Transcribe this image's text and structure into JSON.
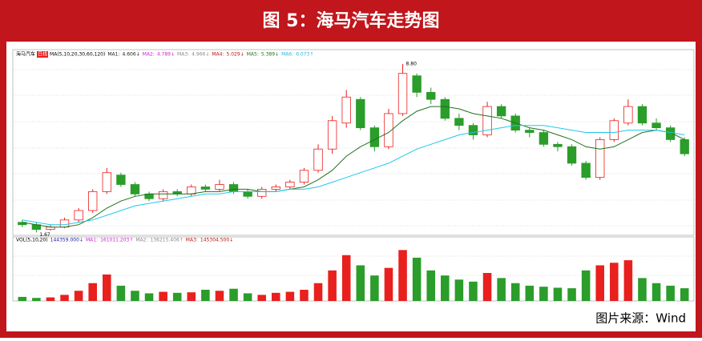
{
  "header": {
    "title": "图 5：海马汽车走势图"
  },
  "footer": {
    "source": "图片来源：Wind"
  },
  "chart_data": {
    "type": "candlestick",
    "price_legend": {
      "name": "海马汽车",
      "period": "日线",
      "indicator": "MA(5,10,20,30,60,120)",
      "items": [
        {
          "label": "MA1:",
          "value": "4.606↓",
          "color": "#1a1a1a"
        },
        {
          "label": "MA2:",
          "value": "4.789↓",
          "color": "#d020d0"
        },
        {
          "label": "MA3:",
          "value": "4.966↓",
          "color": "#888888"
        },
        {
          "label": "MA4:",
          "value": "5.029↓",
          "color": "#c01010"
        },
        {
          "label": "MA5:",
          "value": "5.389↓",
          "color": "#207020"
        },
        {
          "label": "MA6:",
          "value": "6.073↑",
          "color": "#20b8e0"
        }
      ]
    },
    "max_label": "8.80",
    "min_label": "1.67",
    "open": [
      2.1,
      2.0,
      1.8,
      1.9,
      2.2,
      2.6,
      3.4,
      4.1,
      3.7,
      3.3,
      3.1,
      3.4,
      3.3,
      3.6,
      3.5,
      3.7,
      3.4,
      3.2,
      3.5,
      3.6,
      3.8,
      4.3,
      5.2,
      6.3,
      7.3,
      6.1,
      5.3,
      6.7,
      8.3,
      7.6,
      7.3,
      6.5,
      6.2,
      5.8,
      7.0,
      6.6,
      6.0,
      5.9,
      5.4,
      5.3,
      4.6,
      4.0,
      5.6,
      6.3,
      7.0,
      6.3,
      6.1,
      5.6
    ],
    "high": [
      2.2,
      2.1,
      2.0,
      2.3,
      2.7,
      3.5,
      4.4,
      4.2,
      3.8,
      3.4,
      3.5,
      3.5,
      3.7,
      3.7,
      3.9,
      3.8,
      3.5,
      3.6,
      3.7,
      3.9,
      4.4,
      5.4,
      6.6,
      7.7,
      7.4,
      6.2,
      6.9,
      8.8,
      8.4,
      7.8,
      7.4,
      6.7,
      6.3,
      7.2,
      7.1,
      6.7,
      6.1,
      6.0,
      5.5,
      5.4,
      4.7,
      5.7,
      6.5,
      7.3,
      7.1,
      6.5,
      6.2,
      5.7
    ],
    "low": [
      1.9,
      1.67,
      1.75,
      1.85,
      2.1,
      2.5,
      3.3,
      3.6,
      3.2,
      3.0,
      3.0,
      3.2,
      3.2,
      3.4,
      3.4,
      3.3,
      3.1,
      3.1,
      3.4,
      3.5,
      3.7,
      4.2,
      5.0,
      6.1,
      6.0,
      5.1,
      5.2,
      6.6,
      7.4,
      7.1,
      6.4,
      6.0,
      5.6,
      5.7,
      6.5,
      5.9,
      5.7,
      5.3,
      5.1,
      4.5,
      3.9,
      3.9,
      5.5,
      6.2,
      6.2,
      6.0,
      5.5,
      4.9
    ],
    "close": [
      2.0,
      1.8,
      1.9,
      2.2,
      2.6,
      3.4,
      4.2,
      3.7,
      3.3,
      3.1,
      3.4,
      3.3,
      3.6,
      3.5,
      3.7,
      3.4,
      3.2,
      3.5,
      3.6,
      3.8,
      4.3,
      5.2,
      6.4,
      7.4,
      6.1,
      5.3,
      6.7,
      8.4,
      7.6,
      7.3,
      6.5,
      6.2,
      5.8,
      7.0,
      6.6,
      6.0,
      5.9,
      5.4,
      5.3,
      4.6,
      4.0,
      5.6,
      6.4,
      7.0,
      6.3,
      6.1,
      5.6,
      5.0
    ],
    "ma_lines": [
      {
        "color": "#207020",
        "values": [
          2.1,
          2.0,
          1.9,
          1.9,
          2.0,
          2.3,
          2.7,
          3.0,
          3.2,
          3.3,
          3.3,
          3.3,
          3.3,
          3.4,
          3.4,
          3.5,
          3.5,
          3.4,
          3.4,
          3.5,
          3.6,
          3.9,
          4.3,
          4.9,
          5.3,
          5.6,
          5.9,
          6.4,
          6.8,
          7.0,
          7.0,
          6.9,
          6.7,
          6.6,
          6.5,
          6.3,
          6.1,
          6.0,
          5.8,
          5.6,
          5.3,
          5.2,
          5.3,
          5.6,
          5.9,
          6.0,
          5.9,
          5.6
        ]
      },
      {
        "color": "#20c8e8",
        "values": [
          2.2,
          2.1,
          2.0,
          2.0,
          2.1,
          2.2,
          2.4,
          2.6,
          2.8,
          2.9,
          3.0,
          3.1,
          3.2,
          3.3,
          3.3,
          3.4,
          3.4,
          3.4,
          3.4,
          3.5,
          3.5,
          3.6,
          3.8,
          4.0,
          4.2,
          4.4,
          4.6,
          4.9,
          5.2,
          5.4,
          5.6,
          5.8,
          5.9,
          6.0,
          6.1,
          6.2,
          6.2,
          6.2,
          6.1,
          6.0,
          5.9,
          5.9,
          5.9,
          6.0,
          6.0,
          6.0,
          5.9,
          5.8
        ]
      }
    ],
    "ylim": [
      1.55,
      9.0
    ],
    "up_color": "#e8201e",
    "down_color": "#2a9d2a",
    "volume_legend": {
      "indicator": "VOL(5,10,20)",
      "value": "144359.000↓",
      "items": [
        {
          "label": "MA1:",
          "value": "161011.203↑",
          "color": "#d020d0"
        },
        {
          "label": "MA2:",
          "value": "136215.406↑",
          "color": "#888888"
        },
        {
          "label": "MA3:",
          "value": "145304.500↓",
          "color": "#c01010"
        }
      ]
    },
    "volume": [
      80000,
      60000,
      70000,
      120000,
      200000,
      350000,
      520000,
      300000,
      200000,
      150000,
      180000,
      160000,
      170000,
      220000,
      200000,
      240000,
      150000,
      120000,
      160000,
      180000,
      220000,
      350000,
      600000,
      900000,
      700000,
      500000,
      650000,
      1000000,
      850000,
      600000,
      500000,
      420000,
      380000,
      550000,
      450000,
      350000,
      300000,
      280000,
      260000,
      250000,
      600000,
      700000,
      750000,
      800000,
      450000,
      350000,
      300000,
      250000
    ],
    "volume_ylim": [
      0,
      1100000
    ]
  }
}
